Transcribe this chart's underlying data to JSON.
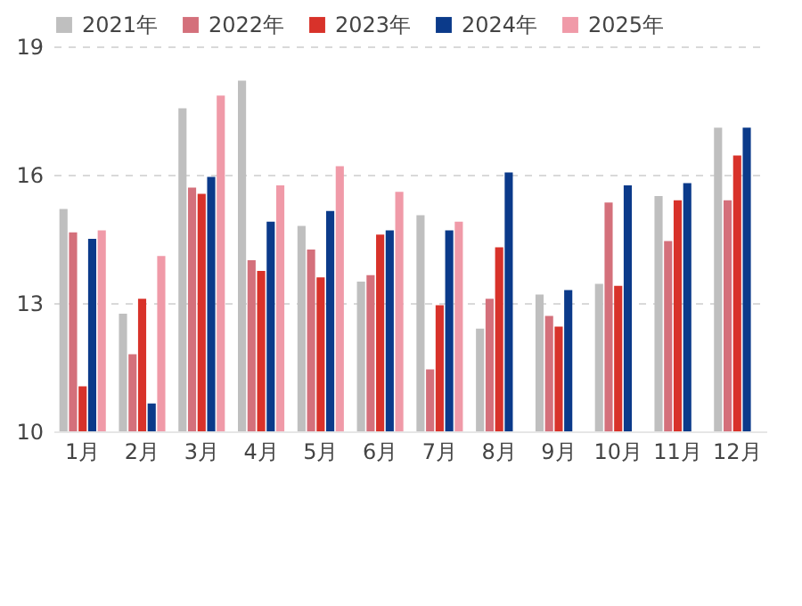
{
  "chart_data": {
    "type": "bar",
    "categories": [
      "1月",
      "2月",
      "3月",
      "4月",
      "5月",
      "6月",
      "7月",
      "8月",
      "9月",
      "10月",
      "11月",
      "12月"
    ],
    "series": [
      {
        "name": "2021年",
        "color": "#bfbfbf",
        "values": [
          15.2,
          12.75,
          17.55,
          18.2,
          14.8,
          13.5,
          15.05,
          12.4,
          13.2,
          13.45,
          15.5,
          17.1
        ]
      },
      {
        "name": "2022年",
        "color": "#d4707b",
        "values": [
          14.65,
          11.8,
          15.7,
          14.0,
          14.25,
          13.65,
          11.45,
          13.1,
          12.7,
          15.35,
          14.45,
          15.4
        ]
      },
      {
        "name": "2023年",
        "color": "#d8322a",
        "values": [
          11.05,
          13.1,
          15.55,
          13.75,
          13.6,
          14.6,
          12.95,
          14.3,
          12.45,
          13.4,
          15.4,
          16.45
        ]
      },
      {
        "name": "2024年",
        "color": "#0b3a8a",
        "values": [
          14.5,
          10.65,
          15.95,
          14.9,
          15.15,
          14.7,
          14.7,
          16.05,
          13.3,
          15.75,
          15.8,
          17.1
        ]
      },
      {
        "name": "2025年",
        "color": "#f09aa8",
        "values": [
          14.7,
          14.1,
          17.85,
          15.75,
          16.2,
          15.6,
          14.9,
          null,
          null,
          null,
          null,
          null
        ]
      }
    ],
    "ylim": [
      10,
      19
    ],
    "yticks": [
      10,
      13,
      16,
      19
    ],
    "grid": "y",
    "legend": "top"
  }
}
